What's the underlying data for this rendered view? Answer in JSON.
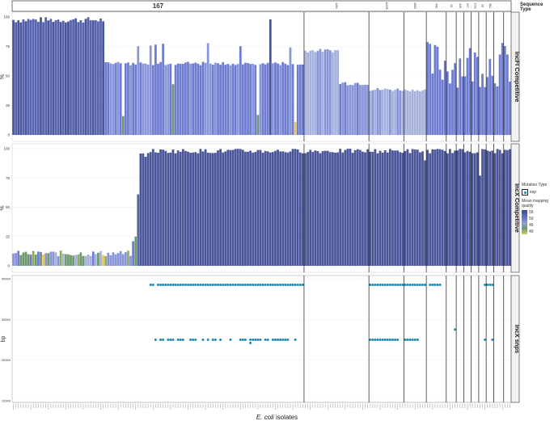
{
  "legend": {
    "sequence_type_title": "Sequence Type",
    "mutation_type_title": "Mutation Type",
    "mutation_key": "snp",
    "quality_title": "Mean mapping quality",
    "quality_ticks": [
      "55",
      "50",
      "45",
      "40"
    ]
  },
  "xlabel": {
    "italic": "E. coli",
    "rest": " isolates"
  },
  "chart_data": [
    {
      "type": "bar",
      "title": "IncFI_Competitive",
      "ylabel": "%",
      "ylim": [
        0,
        100
      ],
      "yticks": [
        0,
        25,
        50,
        75,
        100
      ],
      "sequence_types": [
        "167",
        "1284",
        "11535",
        "2083",
        "448",
        "43",
        "410",
        "617",
        "1721",
        "10",
        "361"
      ],
      "series": [
        {
          "name": "IncFI coverage (%)",
          "values_by_segment": {
            "167": "first ~37 isolates 95-100%, remaining ~100 isolates mostly ~59-62% with peaks 72-78%, one at 98%, and low outliers ~16%, 43%, 17%, 11%",
            "1284": [
              70,
              71,
              72,
              73,
              72,
              71,
              72,
              71,
              72,
              73,
              73,
              72,
              71,
              72
            ],
            "11535": [
              45,
              44,
              43,
              42,
              43,
              46,
              42,
              44,
              45,
              45
            ],
            "2083": [
              40,
              37,
              39,
              39,
              38
            ],
            "448": [
              37,
              38,
              36,
              38,
              38
            ],
            "43": [
              65,
              70
            ],
            "other": [
              80,
              52,
              39,
              60,
              36,
              55,
              20,
              62
            ]
          }
        }
      ],
      "color_scale": {
        "low": "#c9d25a",
        "mid": "#6e9a70",
        "high": "#3e4a96",
        "range": [
          40,
          58
        ]
      }
    },
    {
      "type": "bar",
      "title": "IncX_Competitive",
      "ylabel": "%",
      "ylim": [
        0,
        100
      ],
      "yticks": [
        0,
        25,
        50,
        75,
        100
      ],
      "series": [
        {
          "name": "IncX coverage (%)",
          "description": "first ~48 isolates ~8-13% (mixed quality colours), then ~21%, 25%, 61%, 92% ramp, remaining isolates ~96-100%, dips at ~90% and ~77%"
        }
      ]
    },
    {
      "type": "scatter",
      "title": "IncX_snps",
      "ylabel": "bp",
      "ylim": [
        10000,
        40000
      ],
      "yticks": [
        10000,
        20000,
        30000,
        40000
      ],
      "series": [
        {
          "name": "snp",
          "positions_bp": [
            38500,
            25000,
            27500,
            24200
          ],
          "description": "SNPs clustered at ~38500 bp and ~25000 bp across many ST167 and other isolates; one at ~27500 bp, one at ~24200 bp"
        }
      ]
    }
  ]
}
